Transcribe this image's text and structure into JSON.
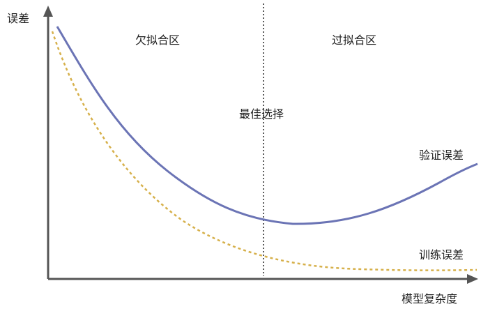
{
  "labels": {
    "y_axis": "误差",
    "x_axis": "模型复杂度",
    "underfit_region": "欠拟合区",
    "overfit_region": "过拟合区",
    "best_choice": "最佳选择",
    "validation_error": "验证误差",
    "training_error": "训练误差"
  },
  "colors": {
    "axis": "#555555",
    "validation_curve": "#6b74b5",
    "training_curve": "#d6b04a",
    "divider": "#333333"
  }
}
